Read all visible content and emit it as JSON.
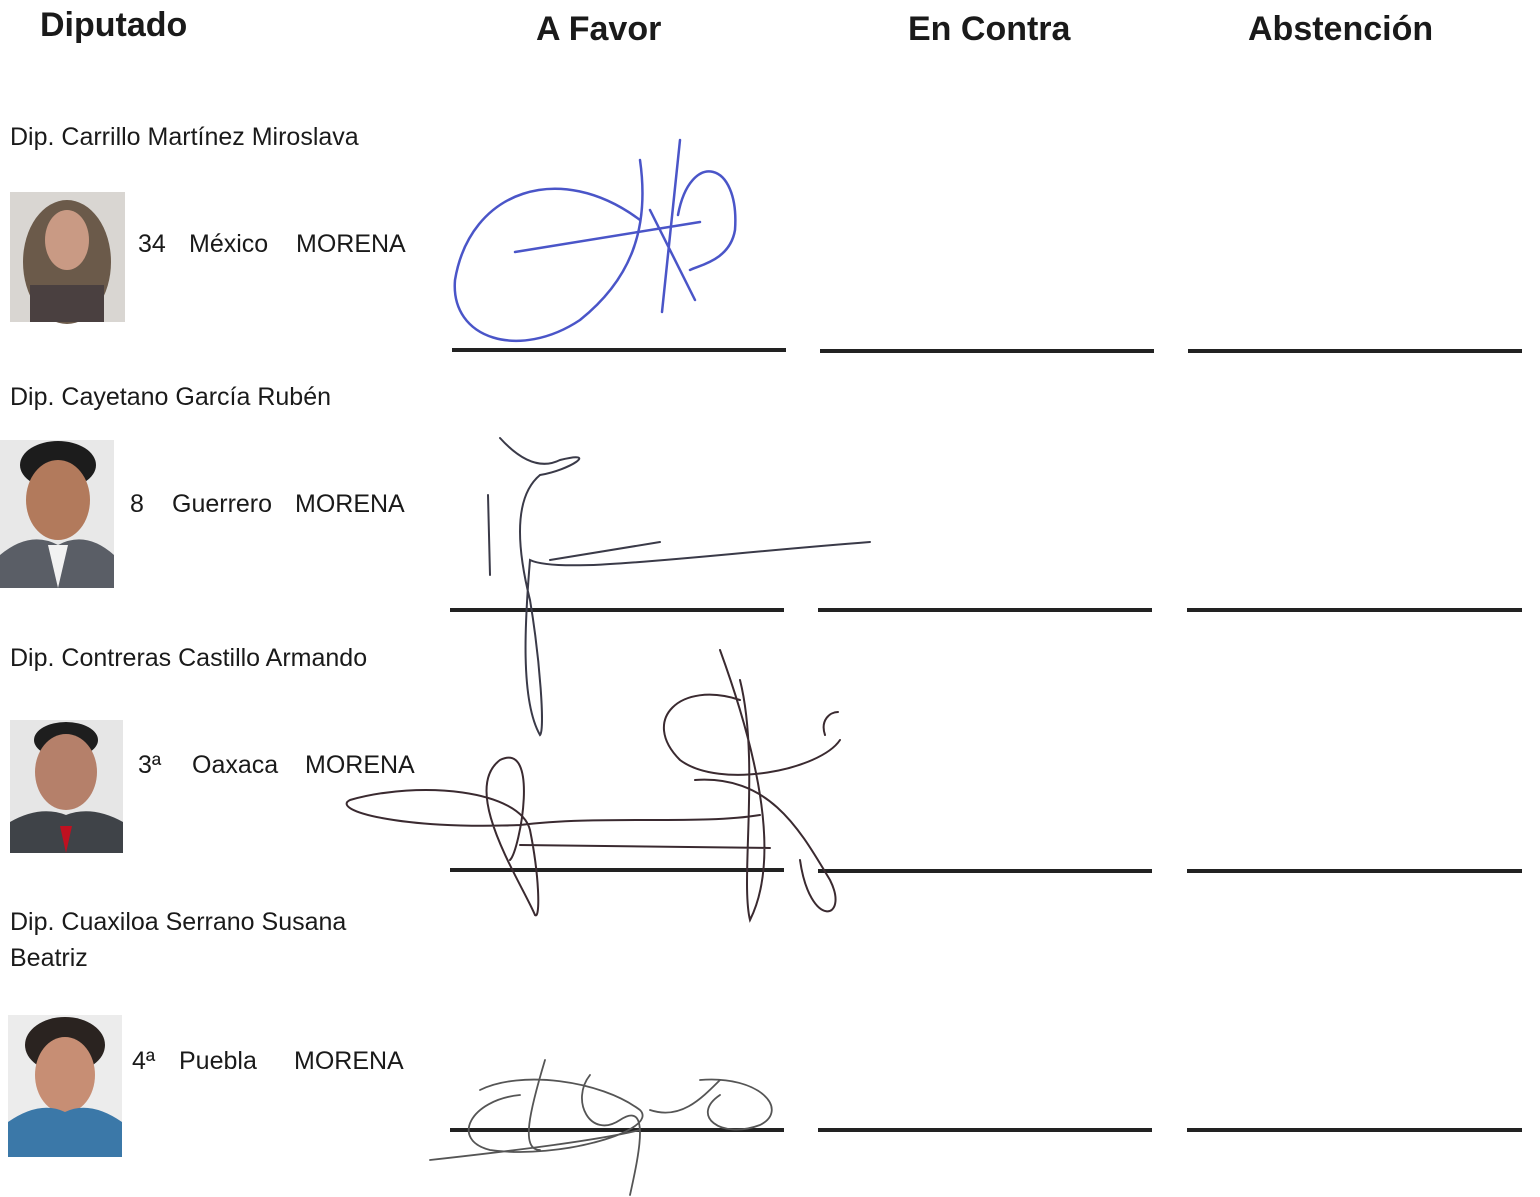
{
  "header": {
    "columns": [
      "Diputado",
      "A Favor",
      "En Contra",
      "Abstención"
    ]
  },
  "rows": [
    {
      "name": "Dip. Carrillo Martínez Miroslava",
      "district": "34",
      "state": "México",
      "party": "MORENA"
    },
    {
      "name": "Dip. Cayetano García Rubén",
      "district": "8",
      "state": "Guerrero",
      "party": "MORENA"
    },
    {
      "name": "Dip. Contreras Castillo Armando",
      "district": "3ª",
      "state": "Oaxaca",
      "party": "MORENA"
    },
    {
      "name": "Dip. Cuaxiloa Serrano Susana Beatriz",
      "district": "4ª",
      "state": "Puebla",
      "party": "MORENA"
    }
  ]
}
